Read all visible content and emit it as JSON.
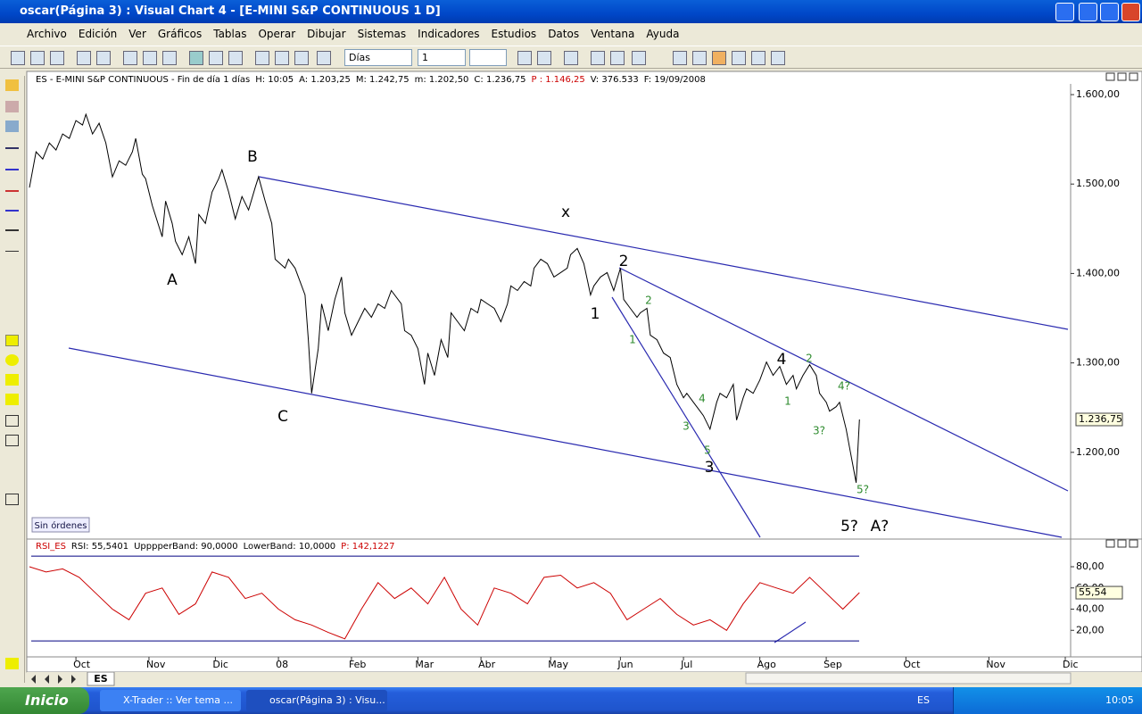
{
  "window": {
    "title": "oscar(Página 3) : Visual Chart 4 - [E-MINI S&P CONTINUOUS 1 D]"
  },
  "menu": [
    "Archivo",
    "Edición",
    "Ver",
    "Gráficos",
    "Tablas",
    "Operar",
    "Dibujar",
    "Sistemas",
    "Indicadores",
    "Estudios",
    "Datos",
    "Ventana",
    "Ayuda"
  ],
  "toolbar": {
    "period": "Días",
    "count": "1"
  },
  "orders_label": "Sin órdenes",
  "tab": "ES",
  "taskbar": {
    "start": "Inicio",
    "tasks": [
      "X-Trader :: Ver tema ...",
      "oscar(Página 3) : Visu..."
    ],
    "language": "ES",
    "clock": "10:05"
  },
  "chart_data": [
    {
      "type": "line",
      "header": [
        {
          "text": "ES - E-MINI S&P CONTINUOUS - Fin de día 1 días",
          "color": "#000000"
        },
        {
          "text": "H: 10:05",
          "color": "#000000"
        },
        {
          "text": "A: 1.203,25",
          "color": "#000000"
        },
        {
          "text": "M: 1.242,75",
          "color": "#000000"
        },
        {
          "text": "m: 1.202,50",
          "color": "#000000"
        },
        {
          "text": "C: 1.236,75",
          "color": "#000000"
        },
        {
          "text": "P : 1.146,25",
          "color": "#cc0000"
        },
        {
          "text": "V: 376.533",
          "color": "#000000"
        },
        {
          "text": "F: 19/09/2008",
          "color": "#000000"
        }
      ],
      "x": [
        0,
        2,
        4,
        6,
        8,
        10,
        12,
        14,
        16,
        17,
        19,
        21,
        23,
        25,
        27,
        29,
        31,
        32,
        34,
        35,
        37,
        40,
        41,
        43,
        44,
        46,
        48,
        50,
        51,
        53,
        55,
        57,
        58,
        60,
        62,
        64,
        66,
        68,
        69,
        71,
        73,
        74,
        77,
        78,
        80,
        83,
        84,
        85,
        87,
        88,
        90,
        92,
        94,
        95,
        97,
        99,
        101,
        103,
        105,
        107,
        109,
        112,
        113,
        115,
        117,
        119,
        120,
        122,
        124,
        126,
        127,
        129,
        131,
        133,
        135,
        136,
        138,
        140,
        142,
        144,
        145,
        147,
        149,
        151,
        152,
        154,
        156,
        158,
        160,
        162,
        163,
        165,
        167,
        169,
        170,
        172,
        174,
        176,
        178,
        179,
        181,
        183,
        184,
        186,
        187,
        189,
        191,
        193,
        195,
        197,
        198,
        200,
        202,
        203,
        205,
        207,
        208,
        210,
        212,
        213,
        215,
        216,
        218,
        220,
        222,
        224,
        226,
        228,
        230,
        231,
        233,
        235,
        237,
        238,
        240,
        241,
        243,
        244,
        246,
        247,
        249,
        250
      ],
      "series": [
        {
          "name": "ES",
          "color": "#000000",
          "values": [
            1496,
            1536,
            1528,
            1546,
            1538,
            1556,
            1551,
            1571,
            1566,
            1578,
            1556,
            1568,
            1546,
            1508,
            1526,
            1521,
            1536,
            1551,
            1511,
            1506,
            1476,
            1441,
            1481,
            1456,
            1436,
            1421,
            1441,
            1411,
            1466,
            1456,
            1491,
            1506,
            1516,
            1491,
            1461,
            1486,
            1471,
            1496,
            1508,
            1481,
            1456,
            1416,
            1406,
            1416,
            1406,
            1376,
            1326,
            1266,
            1316,
            1366,
            1336,
            1371,
            1396,
            1356,
            1331,
            1346,
            1361,
            1351,
            1366,
            1361,
            1381,
            1366,
            1336,
            1331,
            1316,
            1276,
            1311,
            1286,
            1326,
            1306,
            1356,
            1346,
            1336,
            1361,
            1356,
            1371,
            1366,
            1361,
            1346,
            1366,
            1386,
            1381,
            1391,
            1386,
            1406,
            1416,
            1411,
            1396,
            1401,
            1406,
            1421,
            1428,
            1411,
            1376,
            1386,
            1396,
            1401,
            1381,
            1406,
            1371,
            1361,
            1351,
            1356,
            1361,
            1331,
            1326,
            1311,
            1306,
            1276,
            1261,
            1266,
            1256,
            1246,
            1241,
            1226,
            1256,
            1266,
            1261,
            1276,
            1236,
            1261,
            1271,
            1266,
            1281,
            1301,
            1286,
            1296,
            1276,
            1286,
            1271,
            1286,
            1298,
            1286,
            1266,
            1256,
            1246,
            1251,
            1256,
            1226,
            1206,
            1166,
            1236.75
          ]
        }
      ],
      "last_label": "1.236,75",
      "xlim": [
        0,
        312
      ],
      "xticks": [
        {
          "value": 14,
          "label": "Oct"
        },
        {
          "value": 36,
          "label": "Nov"
        },
        {
          "value": 56,
          "label": "Dic"
        },
        {
          "value": 75,
          "label": "08"
        },
        {
          "value": 97,
          "label": "Feb"
        },
        {
          "value": 117,
          "label": "Mar"
        },
        {
          "value": 136,
          "label": "Abr"
        },
        {
          "value": 157,
          "label": "May"
        },
        {
          "value": 178,
          "label": "Jun"
        },
        {
          "value": 197,
          "label": "Jul"
        },
        {
          "value": 220,
          "label": "Ago"
        },
        {
          "value": 240,
          "label": "Sep"
        },
        {
          "value": 264,
          "label": "Oct"
        },
        {
          "value": 289,
          "label": "Nov"
        },
        {
          "value": 312,
          "label": "Dic"
        }
      ],
      "ylim": [
        1105,
        1612
      ],
      "yticks": [
        {
          "value": 1200,
          "label": "1.200,00"
        },
        {
          "value": 1300,
          "label": "1.300,00"
        },
        {
          "value": 1400,
          "label": "1.400,00"
        },
        {
          "value": 1500,
          "label": "1.500,00"
        },
        {
          "value": 1600,
          "label": "1.600,00"
        }
      ],
      "annotations": [
        {
          "text": "A",
          "color": "#000000"
        },
        {
          "text": "B",
          "color": "#000000"
        },
        {
          "text": "C",
          "color": "#000000"
        },
        {
          "text": "x",
          "color": "#000000"
        },
        {
          "text": "1",
          "color": "#000000"
        },
        {
          "text": "2",
          "color": "#000000"
        },
        {
          "text": "3",
          "color": "#000000"
        },
        {
          "text": "4",
          "color": "#000000"
        },
        {
          "text": "5?",
          "color": "#000000"
        },
        {
          "text": "A?",
          "color": "#000000"
        },
        {
          "text": "2",
          "color": "#2e8b2e"
        },
        {
          "text": "1",
          "color": "#2e8b2e"
        },
        {
          "text": "4",
          "color": "#2e8b2e"
        },
        {
          "text": "3",
          "color": "#2e8b2e"
        },
        {
          "text": "5",
          "color": "#2e8b2e"
        },
        {
          "text": "1",
          "color": "#2e8b2e"
        },
        {
          "text": "2",
          "color": "#2e8b2e"
        },
        {
          "text": "4?",
          "color": "#2e8b2e"
        },
        {
          "text": "3?",
          "color": "#2e8b2e"
        },
        {
          "text": "5?",
          "color": "#2e8b2e"
        }
      ]
    },
    {
      "type": "line",
      "header": [
        {
          "text": "RSI_ES",
          "color": "#cc0000"
        },
        {
          "text": "RSI: 55,5401",
          "color": "#000000"
        },
        {
          "text": "UpppperBand: 90,0000",
          "color": "#000000"
        },
        {
          "text": "LowerBand: 10,0000",
          "color": "#000000"
        },
        {
          "text": "P: 142,1227",
          "color": "#cc0000"
        }
      ],
      "x": [
        0,
        5,
        10,
        15,
        20,
        25,
        30,
        35,
        40,
        45,
        50,
        55,
        60,
        65,
        70,
        75,
        80,
        85,
        90,
        95,
        100,
        105,
        110,
        115,
        120,
        125,
        130,
        135,
        140,
        145,
        150,
        155,
        160,
        165,
        170,
        175,
        180,
        185,
        190,
        195,
        200,
        205,
        210,
        215,
        220,
        225,
        230,
        235,
        240,
        245,
        250
      ],
      "series": [
        {
          "name": "RSI",
          "color": "#cc0000",
          "values": [
            80,
            75,
            78,
            70,
            55,
            40,
            30,
            55,
            60,
            35,
            45,
            75,
            70,
            50,
            55,
            40,
            30,
            25,
            18,
            12,
            40,
            65,
            50,
            60,
            45,
            70,
            40,
            25,
            60,
            55,
            45,
            70,
            72,
            60,
            65,
            55,
            30,
            40,
            50,
            35,
            25,
            30,
            20,
            45,
            65,
            60,
            55,
            70,
            55,
            40,
            55.54
          ]
        }
      ],
      "bands": {
        "upper": 90,
        "lower": 10,
        "color": "#000080"
      },
      "last_label": "55,54",
      "xlim": [
        0,
        312
      ],
      "ylim": [
        0,
        96
      ],
      "yticks": [
        {
          "value": 20,
          "label": "20,00"
        },
        {
          "value": 40,
          "label": "40,00"
        },
        {
          "value": 60,
          "label": "60,00"
        },
        {
          "value": 80,
          "label": "80,00"
        }
      ]
    }
  ]
}
